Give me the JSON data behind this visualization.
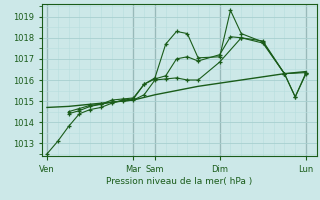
{
  "bg_color": "#cce8e8",
  "grid_color_major": "#a8d0d0",
  "grid_color_minor": "#b8dede",
  "line_color": "#1a5c1a",
  "xlabel_text": "Pression niveau de la mer( hPa )",
  "ylim": [
    1012.4,
    1019.6
  ],
  "yticks": [
    1013,
    1014,
    1015,
    1016,
    1017,
    1018,
    1019
  ],
  "day_labels": [
    "Ven",
    "Mar",
    "Sam",
    "Dim",
    "Lun"
  ],
  "day_positions": [
    0,
    8,
    10,
    16,
    24
  ],
  "xlim": [
    -0.5,
    25
  ],
  "vline_positions": [
    0,
    8,
    10,
    16,
    24
  ],
  "series1_x": [
    0,
    1,
    2,
    3,
    4,
    5,
    6,
    7,
    8,
    9,
    10,
    11,
    12,
    13,
    14,
    16,
    17,
    18,
    20,
    22,
    23,
    24
  ],
  "series1_y": [
    1012.5,
    1013.1,
    1013.8,
    1014.4,
    1014.6,
    1014.7,
    1014.9,
    1015.05,
    1015.1,
    1015.8,
    1016.1,
    1017.7,
    1018.3,
    1018.2,
    1017.05,
    1017.1,
    1019.3,
    1018.2,
    1017.8,
    1016.3,
    1015.2,
    1016.3
  ],
  "series2_x": [
    2,
    3,
    4,
    5,
    6,
    7,
    8,
    9,
    10,
    11,
    12,
    13,
    14,
    16,
    17,
    18,
    20,
    22,
    23,
    24
  ],
  "series2_y": [
    1014.4,
    1014.55,
    1014.75,
    1014.85,
    1015.05,
    1015.1,
    1015.15,
    1015.8,
    1016.05,
    1016.2,
    1017.0,
    1017.1,
    1016.9,
    1017.2,
    1018.05,
    1018.0,
    1017.75,
    1016.3,
    1015.2,
    1016.35
  ],
  "series3_x": [
    2,
    3,
    4,
    5,
    6,
    7,
    8,
    9,
    10,
    11,
    12,
    13,
    14,
    16,
    18,
    20,
    22,
    24
  ],
  "series3_y": [
    1014.5,
    1014.65,
    1014.8,
    1014.85,
    1014.95,
    1015.0,
    1015.05,
    1015.3,
    1016.0,
    1016.05,
    1016.1,
    1016.0,
    1016.0,
    1016.85,
    1018.0,
    1017.85,
    1016.3,
    1016.35
  ],
  "series4_x": [
    0,
    2,
    4,
    6,
    8,
    10,
    12,
    14,
    16,
    18,
    20,
    22,
    24
  ],
  "series4_y": [
    1014.7,
    1014.75,
    1014.85,
    1014.95,
    1015.05,
    1015.3,
    1015.5,
    1015.7,
    1015.85,
    1016.0,
    1016.15,
    1016.3,
    1016.4
  ]
}
